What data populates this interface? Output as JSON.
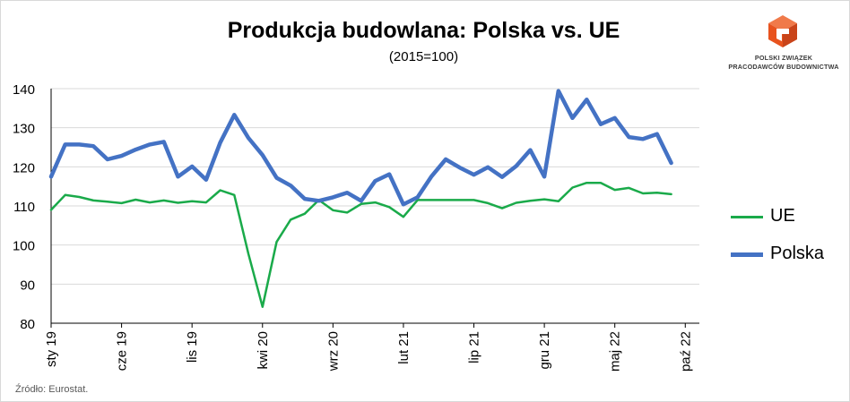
{
  "header": {
    "title": "Produkcja budowlana: Polska vs. UE",
    "subtitle": "(2015=100)"
  },
  "logo": {
    "line1": "POLSKI ZWIĄZEK",
    "line2": "PRACODAWCÓW BUDOWNICTWA",
    "colors": [
      "#e8531e",
      "#c9441a",
      "#f07a4a"
    ]
  },
  "source_note": "Źródło: Eurostat.",
  "chart_data": {
    "type": "line",
    "title": "Produkcja budowlana: Polska vs. UE",
    "subtitle": "(2015=100)",
    "xlabel": "",
    "ylabel": "",
    "ylim": [
      80,
      140
    ],
    "yticks": [
      80,
      90,
      100,
      110,
      120,
      130,
      140
    ],
    "x_start": "2019-01",
    "x_tick_labels": [
      "sty 19",
      "cze 19",
      "lis 19",
      "kwi 20",
      "wrz 20",
      "lut 21",
      "lip 21",
      "gru 21",
      "maj 22",
      "paź 22"
    ],
    "x_tick_months": [
      0,
      5,
      10,
      15,
      20,
      25,
      30,
      35,
      40,
      45
    ],
    "x_months_total": 46,
    "grid": true,
    "legend": "right",
    "series": [
      {
        "name": "UE",
        "color": "#1aaa4a",
        "values": [
          109,
          112.8,
          112.3,
          111.4,
          111.1,
          110.7,
          111.6,
          110.9,
          111.4,
          110.8,
          111.2,
          110.9,
          114,
          112.8,
          97.8,
          84.2,
          100.8,
          106.5,
          108,
          111.5,
          108.9,
          108.3,
          110.5,
          110.9,
          109.7,
          107.2,
          111.5,
          111.5,
          111.5,
          111.5,
          111.5,
          110.7,
          109.4,
          110.8,
          111.3,
          111.7,
          111.2,
          114.7,
          115.9,
          115.9,
          114.1,
          114.6,
          113.2,
          113.4,
          113
        ]
      },
      {
        "name": "Polska",
        "color": "#4472c4",
        "values": [
          117.5,
          125.7,
          125.7,
          125.3,
          121.9,
          122.8,
          124.4,
          125.7,
          126.4,
          117.5,
          120.1,
          116.7,
          126.2,
          133.3,
          127.4,
          123,
          117.2,
          115.2,
          111.8,
          111.3,
          112.2,
          113.4,
          111.3,
          116.4,
          118.1,
          110.4,
          112.2,
          117.6,
          121.9,
          119.8,
          118,
          119.9,
          117.4,
          120.2,
          124.3,
          117.5,
          139.4,
          132.5,
          137.2,
          130.9,
          132.5,
          127.6,
          127.1,
          128.4,
          121
        ]
      }
    ]
  }
}
